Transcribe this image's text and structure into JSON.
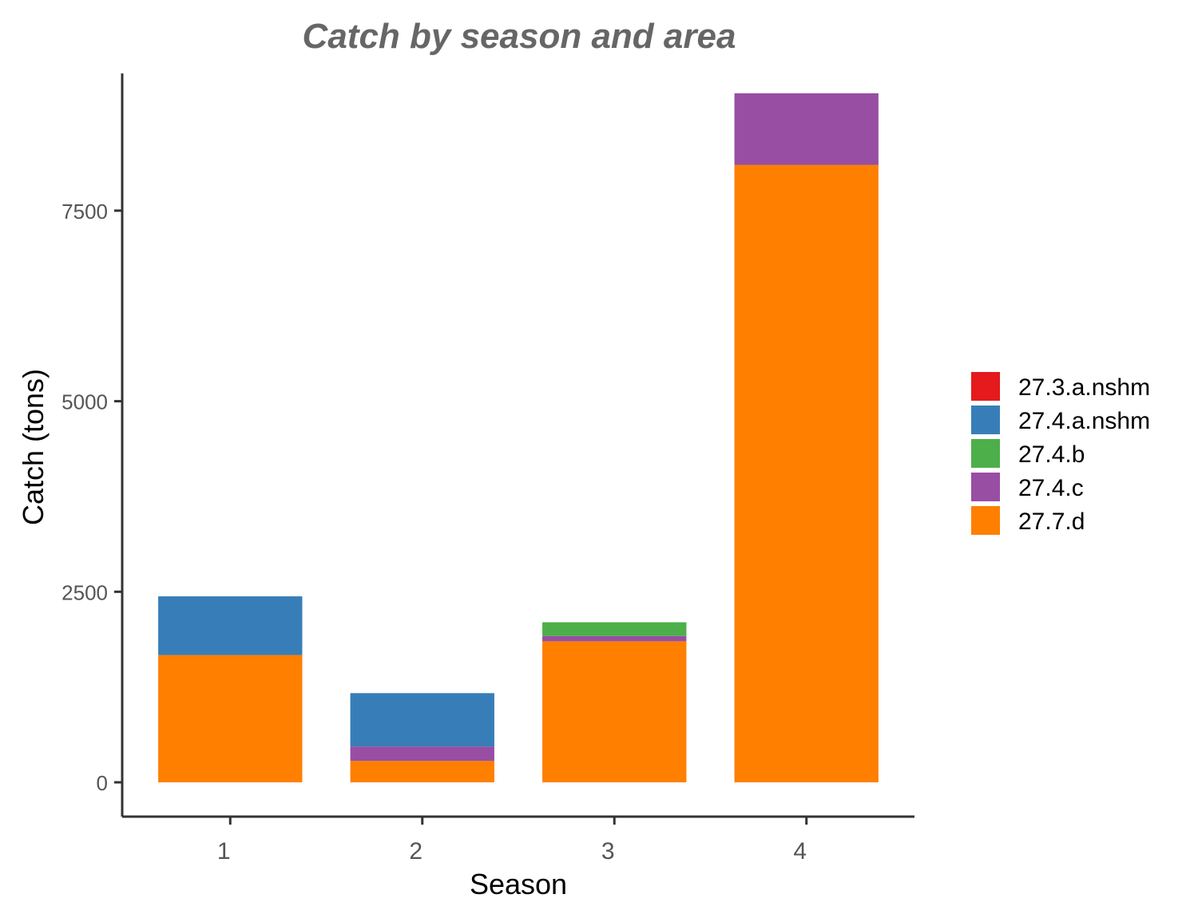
{
  "chart_data": {
    "type": "bar",
    "stacked": true,
    "title": "Catch by season and area",
    "xlabel": "Season",
    "ylabel": "Catch (tons)",
    "categories": [
      "1",
      "2",
      "3",
      "4"
    ],
    "y_ticks": [
      0,
      2500,
      5000,
      7500
    ],
    "ylim": [
      -450,
      9300
    ],
    "grid": false,
    "legend_position": "right",
    "series": [
      {
        "name": "27.7.d",
        "color": "#FF7F00",
        "values": [
          1670,
          280,
          1850,
          8100
        ]
      },
      {
        "name": "27.4.c",
        "color": "#984EA3",
        "values": [
          0,
          190,
          70,
          940
        ]
      },
      {
        "name": "27.4.b",
        "color": "#4DAF4A",
        "values": [
          0,
          0,
          180,
          0
        ]
      },
      {
        "name": "27.4.a.nshm",
        "color": "#377EB8",
        "values": [
          770,
          700,
          0,
          0
        ]
      },
      {
        "name": "27.3.a.nshm",
        "color": "#E41A1C",
        "values": [
          0,
          0,
          0,
          0
        ]
      }
    ],
    "legend_order": [
      "27.3.a.nshm",
      "27.4.a.nshm",
      "27.4.b",
      "27.4.c",
      "27.7.d"
    ]
  }
}
